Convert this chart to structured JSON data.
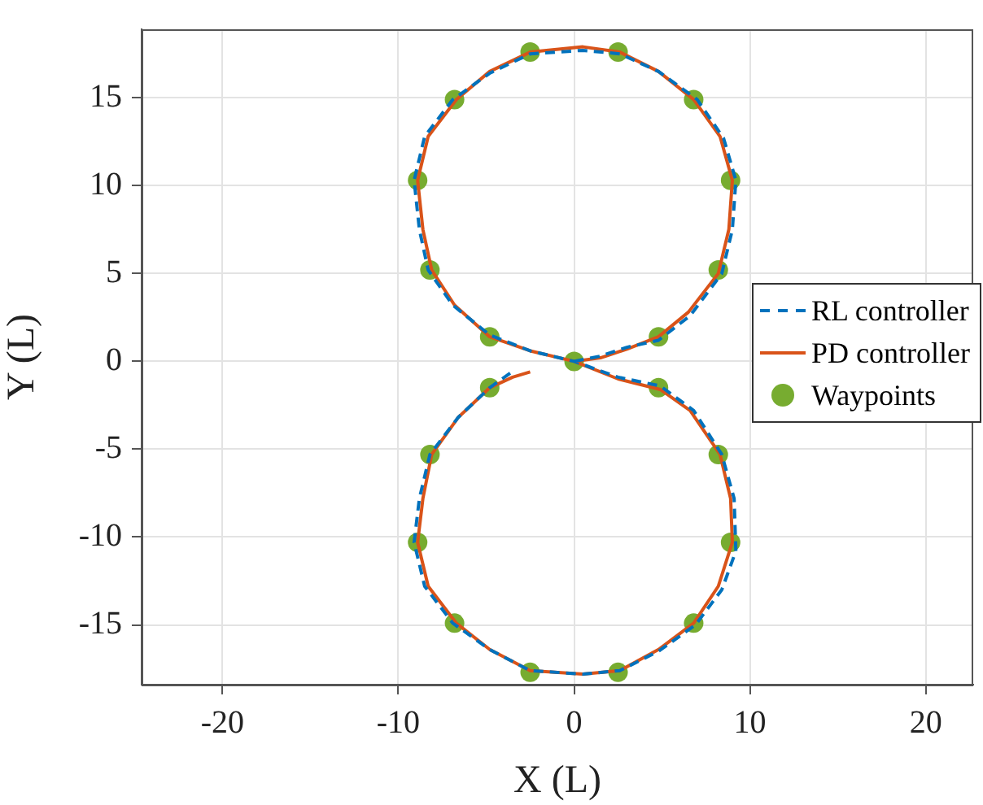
{
  "chart_data": {
    "type": "line",
    "xlabel": "X (L)",
    "ylabel": "Y (L)",
    "xlim": [
      -24.6,
      22.7
    ],
    "ylim": [
      -18.4,
      18.9
    ],
    "xticks": [
      -20,
      -10,
      0,
      10,
      20
    ],
    "yticks": [
      -15,
      -10,
      -5,
      0,
      5,
      10,
      15
    ],
    "grid": true,
    "legend": "right",
    "series": [
      {
        "name": "RL controller",
        "type": "line",
        "line_style": "dashed",
        "marker": "none",
        "color": "#0072bd",
        "x": [
          0,
          1.5,
          3,
          4.8,
          6.6,
          8.4,
          9.0,
          9.2,
          8.5,
          7.0,
          4.8,
          2.6,
          0.5,
          -2.5,
          -4.8,
          -6.9,
          -8.5,
          -9.1,
          -8.8,
          -8.3,
          -6.9,
          -4.8,
          -2.5,
          0,
          2.5,
          4.9,
          6.8,
          8.4,
          9.1,
          9.2,
          8.4,
          6.9,
          4.8,
          2.6,
          0.5,
          -2.5,
          -4.8,
          -6.9,
          -8.5,
          -9.1,
          -8.8,
          -8.2,
          -6.6,
          -4.8,
          -3.4
        ],
        "values": [
          0,
          0.3,
          0.8,
          1.2,
          2.6,
          5.0,
          7.5,
          10.3,
          12.7,
          14.9,
          16.5,
          17.5,
          17.7,
          17.5,
          16.4,
          14.9,
          12.8,
          10.3,
          7.5,
          5.2,
          3.2,
          1.5,
          0.6,
          0,
          -0.9,
          -1.4,
          -2.8,
          -5.3,
          -7.8,
          -10.8,
          -13.0,
          -15.0,
          -16.5,
          -17.6,
          -17.8,
          -17.6,
          -16.4,
          -14.9,
          -12.8,
          -10.3,
          -7.8,
          -5.3,
          -3.2,
          -1.5,
          -0.5
        ]
      },
      {
        "name": "PD controller",
        "type": "line",
        "line_style": "solid",
        "marker": "none",
        "color": "#d95319",
        "x": [
          0,
          1.5,
          3,
          4.8,
          6.5,
          8.2,
          8.8,
          9.0,
          8.3,
          6.8,
          4.8,
          2.6,
          0.5,
          -2.5,
          -4.8,
          -6.7,
          -8.3,
          -8.9,
          -8.6,
          -8.1,
          -6.8,
          -4.8,
          -2.5,
          0,
          2.5,
          4.9,
          6.6,
          8.3,
          8.9,
          9.0,
          8.2,
          6.8,
          4.8,
          2.6,
          0.5,
          -2.5,
          -4.8,
          -6.7,
          -8.3,
          -8.9,
          -8.6,
          -8.1,
          -6.6,
          -4.8,
          -3.5,
          -2.5
        ],
        "values": [
          0,
          0.2,
          0.7,
          1.4,
          2.8,
          5.0,
          7.5,
          10.3,
          12.8,
          14.9,
          16.5,
          17.6,
          17.9,
          17.6,
          16.5,
          14.9,
          12.8,
          10.3,
          7.5,
          5.2,
          3.2,
          1.4,
          0.6,
          0,
          -1.0,
          -1.6,
          -2.8,
          -5.3,
          -7.8,
          -10.3,
          -12.8,
          -14.9,
          -16.4,
          -17.6,
          -17.8,
          -17.6,
          -16.4,
          -14.9,
          -12.8,
          -10.3,
          -7.8,
          -5.3,
          -3.2,
          -1.5,
          -0.9,
          -0.6
        ]
      },
      {
        "name": "Waypoints",
        "type": "scatter",
        "marker": "circle",
        "color": "#77ac30",
        "x": [
          0,
          4.8,
          8.2,
          8.9,
          6.8,
          2.5,
          -2.5,
          -6.8,
          -8.9,
          -8.2,
          -4.8,
          4.8,
          8.2,
          8.9,
          6.8,
          2.5,
          -2.5,
          -6.8,
          -8.9,
          -8.2,
          -4.8
        ],
        "values": [
          0,
          1.4,
          5.2,
          10.3,
          14.9,
          17.6,
          17.6,
          14.9,
          10.3,
          5.2,
          1.4,
          -1.5,
          -5.3,
          -10.3,
          -14.9,
          -17.7,
          -17.7,
          -14.9,
          -10.3,
          -5.3,
          -1.5
        ]
      }
    ]
  }
}
